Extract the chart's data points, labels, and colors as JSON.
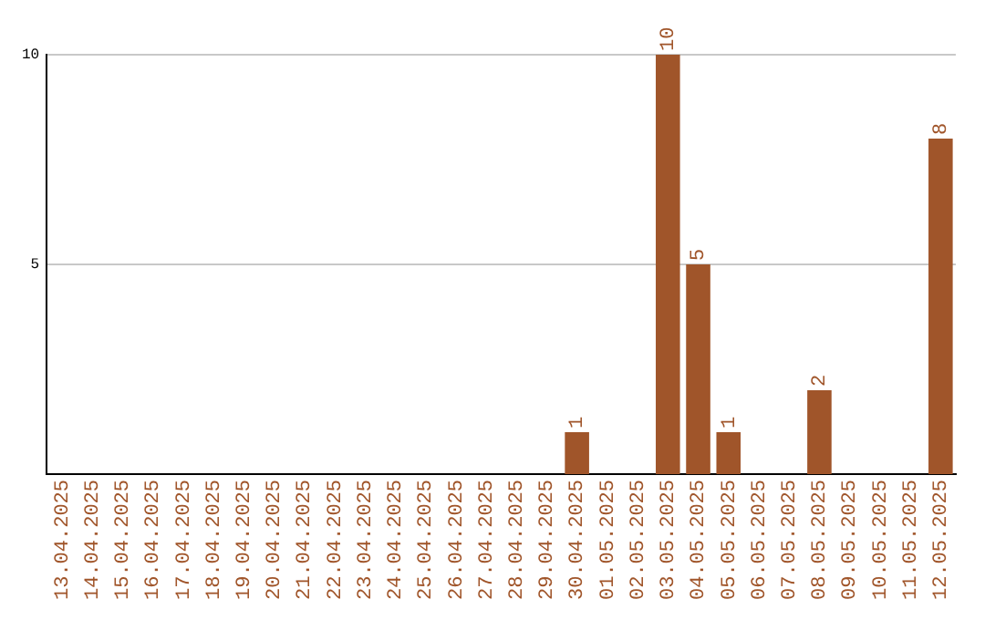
{
  "chart_data": {
    "type": "bar",
    "categories": [
      "13.04.2025",
      "14.04.2025",
      "15.04.2025",
      "16.04.2025",
      "17.04.2025",
      "18.04.2025",
      "19.04.2025",
      "20.04.2025",
      "21.04.2025",
      "22.04.2025",
      "23.04.2025",
      "24.04.2025",
      "25.04.2025",
      "26.04.2025",
      "27.04.2025",
      "28.04.2025",
      "29.04.2025",
      "30.04.2025",
      "01.05.2025",
      "02.05.2025",
      "03.05.2025",
      "04.05.2025",
      "05.05.2025",
      "06.05.2025",
      "07.05.2025",
      "08.05.2025",
      "09.05.2025",
      "10.05.2025",
      "11.05.2025",
      "12.05.2025"
    ],
    "values": [
      0,
      0,
      0,
      0,
      0,
      0,
      0,
      0,
      0,
      0,
      0,
      0,
      0,
      0,
      0,
      0,
      0,
      1,
      0,
      0,
      10,
      5,
      1,
      0,
      0,
      2,
      0,
      0,
      0,
      8
    ],
    "value_labels": [
      null,
      null,
      null,
      null,
      null,
      null,
      null,
      null,
      null,
      null,
      null,
      null,
      null,
      null,
      null,
      null,
      null,
      "1",
      null,
      null,
      "10",
      "5",
      "1",
      null,
      null,
      "2",
      null,
      null,
      null,
      "8"
    ],
    "color": "#a0552a",
    "ylim": [
      0,
      10
    ],
    "yticks": [
      5,
      10
    ],
    "grid": "y",
    "legend": false
  }
}
